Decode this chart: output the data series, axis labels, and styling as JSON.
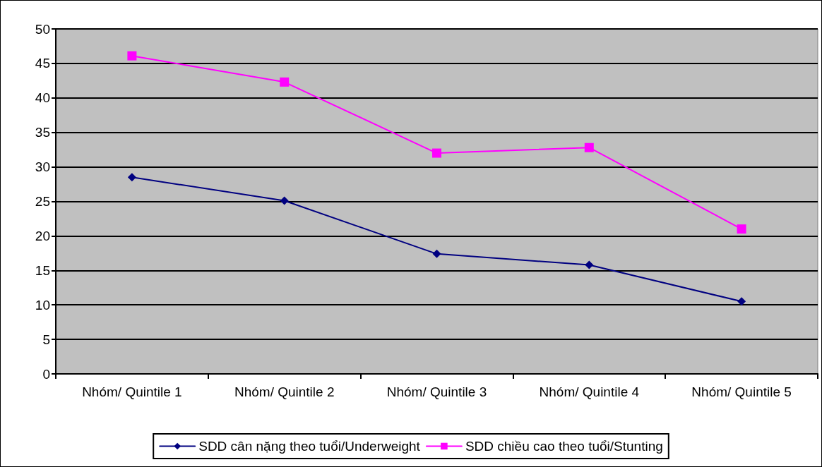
{
  "chart_data": {
    "type": "line",
    "categories": [
      "Nhóm/ Quintile 1",
      "Nhóm/ Quintile 2",
      "Nhóm/ Quintile 3",
      "Nhóm/ Quintile 4",
      "Nhóm/ Quintile 5"
    ],
    "series": [
      {
        "name": "SDD cân nặng theo tuổi/Underweight",
        "color": "#000080",
        "marker": "diamond",
        "values": [
          28.5,
          25.1,
          17.4,
          15.8,
          10.5
        ]
      },
      {
        "name": "SDD chiều cao theo tuổi/Stunting",
        "color": "#ff00ff",
        "marker": "square",
        "values": [
          46.1,
          42.3,
          32.0,
          32.8,
          21.0
        ]
      }
    ],
    "ylim": [
      0,
      50
    ],
    "yticks": [
      0,
      5,
      10,
      15,
      20,
      25,
      30,
      35,
      40,
      45,
      50
    ],
    "grid": "y",
    "legend": "bottom",
    "line_style": "solid"
  }
}
